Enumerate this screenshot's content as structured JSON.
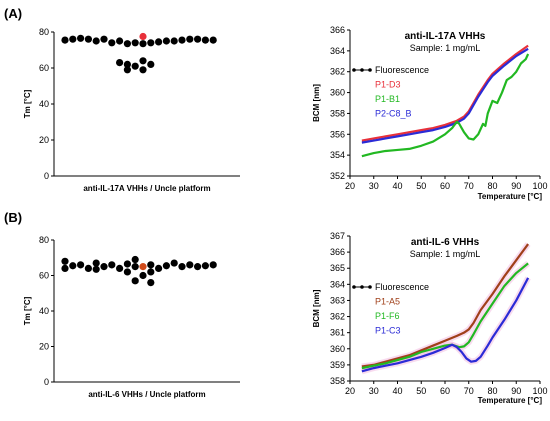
{
  "panel_labels": [
    "(A)",
    "(B)"
  ],
  "colors": {
    "black": "#000000",
    "red": "#e8303a",
    "green": "#22b822",
    "blue": "#2b2bd6",
    "brown": "#a0401a",
    "pink": "#f2b8e0",
    "orange": "#d04a1a"
  },
  "chart_data": [
    {
      "type": "scatter",
      "id": "A-left",
      "xlabel": "anti-IL-17A VHHs / Uncle platform",
      "ylabel": "Tm [°C]",
      "ylim": [
        0,
        80
      ],
      "yticks": [
        0,
        20,
        40,
        60,
        80
      ],
      "points": [
        {
          "x": -10,
          "y": 75.5
        },
        {
          "x": -9,
          "y": 76
        },
        {
          "x": -8,
          "y": 76.5
        },
        {
          "x": -7,
          "y": 76
        },
        {
          "x": -6,
          "y": 75
        },
        {
          "x": -5,
          "y": 76
        },
        {
          "x": -4,
          "y": 74
        },
        {
          "x": -3,
          "y": 75
        },
        {
          "x": -2,
          "y": 73.5
        },
        {
          "x": -1,
          "y": 74
        },
        {
          "x": 0,
          "y": 77.5,
          "highlight": "red"
        },
        {
          "x": 0,
          "y": 73.5
        },
        {
          "x": 1,
          "y": 74
        },
        {
          "x": 2,
          "y": 74.5
        },
        {
          "x": 3,
          "y": 75
        },
        {
          "x": 4,
          "y": 75
        },
        {
          "x": 5,
          "y": 75.5
        },
        {
          "x": 6,
          "y": 76
        },
        {
          "x": 7,
          "y": 76
        },
        {
          "x": 8,
          "y": 75.5
        },
        {
          "x": 9,
          "y": 75.5
        },
        {
          "x": -3,
          "y": 63
        },
        {
          "x": -2,
          "y": 62
        },
        {
          "x": -1,
          "y": 61
        },
        {
          "x": 0,
          "y": 64
        },
        {
          "x": 1,
          "y": 62
        },
        {
          "x": -2,
          "y": 59
        },
        {
          "x": 0,
          "y": 59
        }
      ]
    },
    {
      "type": "line",
      "id": "A-right",
      "title": "anti-IL-17A VHHs",
      "subtitle": "Sample: 1 mg/mL",
      "xlabel": "Temperature [°C]",
      "ylabel": "BCM [nm]",
      "xlim": [
        20,
        100
      ],
      "ylim": [
        352,
        366
      ],
      "xticks": [
        20,
        30,
        40,
        50,
        60,
        70,
        80,
        90,
        100
      ],
      "yticks": [
        352,
        354,
        356,
        358,
        360,
        362,
        364,
        366
      ],
      "legend": [
        {
          "label": "Fluorescence",
          "color": "black",
          "marker": true
        },
        {
          "label": "P1-D3",
          "color": "red"
        },
        {
          "label": "P1-B1",
          "color": "green"
        },
        {
          "label": "P2-C8_B",
          "color": "blue"
        }
      ],
      "series": [
        {
          "name": "P1-D3",
          "color": "red",
          "x": [
            25,
            30,
            35,
            40,
            45,
            50,
            55,
            60,
            65,
            68,
            70,
            72,
            74,
            76,
            78,
            80,
            85,
            90,
            95
          ],
          "y": [
            355.4,
            355.6,
            355.8,
            356.0,
            356.2,
            356.4,
            356.6,
            356.9,
            357.3,
            357.7,
            358.2,
            359.0,
            359.8,
            360.5,
            361.2,
            361.8,
            362.8,
            363.7,
            364.5
          ]
        },
        {
          "name": "P2-C8_B",
          "color": "blue",
          "x": [
            25,
            30,
            35,
            40,
            45,
            50,
            55,
            60,
            65,
            68,
            70,
            72,
            74,
            76,
            78,
            80,
            85,
            90,
            95
          ],
          "y": [
            355.2,
            355.4,
            355.6,
            355.8,
            356.0,
            356.2,
            356.4,
            356.7,
            357.1,
            357.5,
            358.0,
            358.8,
            359.6,
            360.3,
            361.0,
            361.6,
            362.6,
            363.5,
            364.2
          ]
        },
        {
          "name": "P1-B1",
          "color": "green",
          "x": [
            25,
            30,
            35,
            40,
            45,
            50,
            55,
            60,
            63,
            65,
            66,
            68,
            70,
            72,
            74,
            76,
            77,
            78,
            80,
            82,
            84,
            86,
            88,
            90,
            92,
            94,
            95
          ],
          "y": [
            353.9,
            354.2,
            354.4,
            354.5,
            354.6,
            354.9,
            355.3,
            356.0,
            356.6,
            357.2,
            357.0,
            356.2,
            355.6,
            355.5,
            356.0,
            357.0,
            356.8,
            358.0,
            359.2,
            359.0,
            360.0,
            361.2,
            361.5,
            362.0,
            362.8,
            363.2,
            363.7
          ]
        }
      ]
    },
    {
      "type": "scatter",
      "id": "B-left",
      "xlabel": "anti-IL-6 VHHs / Uncle platform",
      "ylabel": "Tm [°C]",
      "ylim": [
        0,
        80
      ],
      "yticks": [
        0,
        20,
        40,
        60,
        80
      ],
      "points": [
        {
          "x": -10,
          "y": 68
        },
        {
          "x": -10,
          "y": 64
        },
        {
          "x": -9,
          "y": 65.5
        },
        {
          "x": -8,
          "y": 66
        },
        {
          "x": -7,
          "y": 64
        },
        {
          "x": -6,
          "y": 67
        },
        {
          "x": -6,
          "y": 63.5
        },
        {
          "x": -5,
          "y": 65
        },
        {
          "x": -4,
          "y": 66
        },
        {
          "x": -3,
          "y": 64
        },
        {
          "x": -2,
          "y": 66.5
        },
        {
          "x": -1,
          "y": 65
        },
        {
          "x": -1,
          "y": 69
        },
        {
          "x": 0,
          "y": 65,
          "highlight": "orange"
        },
        {
          "x": 1,
          "y": 66
        },
        {
          "x": 2,
          "y": 64
        },
        {
          "x": 3,
          "y": 65.5
        },
        {
          "x": 4,
          "y": 67
        },
        {
          "x": 5,
          "y": 65
        },
        {
          "x": 6,
          "y": 66
        },
        {
          "x": 7,
          "y": 65
        },
        {
          "x": 8,
          "y": 65.5
        },
        {
          "x": 9,
          "y": 66
        },
        {
          "x": -2,
          "y": 62
        },
        {
          "x": 0,
          "y": 60
        },
        {
          "x": 1,
          "y": 62
        },
        {
          "x": -1,
          "y": 57
        },
        {
          "x": 1,
          "y": 56
        }
      ]
    },
    {
      "type": "line",
      "id": "B-right",
      "title": "anti-IL-6 VHHs",
      "subtitle": "Sample: 1 mg/mL",
      "xlabel": "Temperature [°C]",
      "ylabel": "BCM [nm]",
      "xlim": [
        20,
        100
      ],
      "ylim": [
        358,
        367
      ],
      "xticks": [
        20,
        30,
        40,
        50,
        60,
        70,
        80,
        90,
        100
      ],
      "yticks": [
        358,
        359,
        360,
        361,
        362,
        363,
        364,
        365,
        366,
        367
      ],
      "legend": [
        {
          "label": "Fluorescence",
          "color": "black",
          "marker": true
        },
        {
          "label": "P1-A5",
          "color": "brown"
        },
        {
          "label": "P1-F6",
          "color": "green"
        },
        {
          "label": "P1-C3",
          "color": "blue"
        }
      ],
      "series": [
        {
          "name": "P1-A5",
          "color": "brown",
          "x": [
            25,
            30,
            35,
            40,
            45,
            50,
            55,
            60,
            65,
            68,
            70,
            72,
            75,
            80,
            85,
            90,
            95
          ],
          "y": [
            358.9,
            359.0,
            359.2,
            359.4,
            359.6,
            359.9,
            360.2,
            360.5,
            360.8,
            361.0,
            361.2,
            361.6,
            362.4,
            363.4,
            364.5,
            365.5,
            366.5
          ]
        },
        {
          "name": "P1-F6",
          "color": "green",
          "x": [
            25,
            30,
            35,
            40,
            45,
            50,
            55,
            60,
            63,
            66,
            68,
            70,
            72,
            75,
            80,
            85,
            90,
            95
          ],
          "y": [
            358.8,
            358.95,
            359.1,
            359.3,
            359.5,
            359.8,
            360.0,
            360.2,
            360.25,
            360.1,
            360.15,
            360.4,
            360.9,
            361.7,
            362.8,
            363.9,
            364.7,
            365.3
          ]
        },
        {
          "name": "P1-C3",
          "color": "blue",
          "x": [
            25,
            30,
            35,
            40,
            45,
            50,
            55,
            60,
            63,
            65,
            67,
            69,
            71,
            73,
            75,
            78,
            80,
            85,
            90,
            95
          ],
          "y": [
            358.6,
            358.8,
            358.95,
            359.1,
            359.3,
            359.5,
            359.75,
            360.05,
            360.25,
            360.1,
            359.8,
            359.4,
            359.2,
            359.25,
            359.5,
            360.2,
            360.7,
            361.8,
            363.0,
            364.4
          ]
        }
      ]
    }
  ]
}
